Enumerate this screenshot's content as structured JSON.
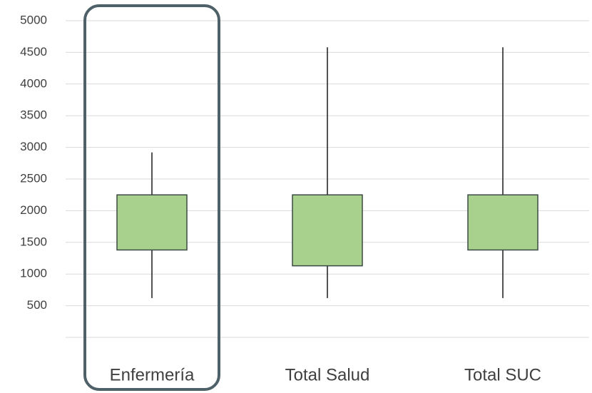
{
  "chart_data": {
    "type": "boxplot",
    "title": "",
    "xlabel": "",
    "ylabel": "",
    "ylim": [
      0,
      5000
    ],
    "y_ticks": [
      500,
      1000,
      1500,
      2000,
      2500,
      3000,
      3500,
      4000,
      4500,
      5000
    ],
    "categories": [
      "Enfermería",
      "Total Salud",
      "Total SUC"
    ],
    "series": [
      {
        "category": "Enfermería",
        "min": 620,
        "q1": 1380,
        "q3": 2250,
        "max": 2920
      },
      {
        "category": "Total Salud",
        "min": 620,
        "q1": 1130,
        "q3": 2250,
        "max": 4580
      },
      {
        "category": "Total SUC",
        "min": 620,
        "q1": 1380,
        "q3": 2250,
        "max": 4580
      }
    ],
    "highlighted_category": "Enfermería",
    "grid": true,
    "colors": {
      "box_fill": "#a9d18e",
      "box_stroke": "#3b4a43",
      "highlight_stroke": "#4f6168",
      "gridline": "#d9d9d9",
      "whisker": "#1a1a1a"
    }
  }
}
